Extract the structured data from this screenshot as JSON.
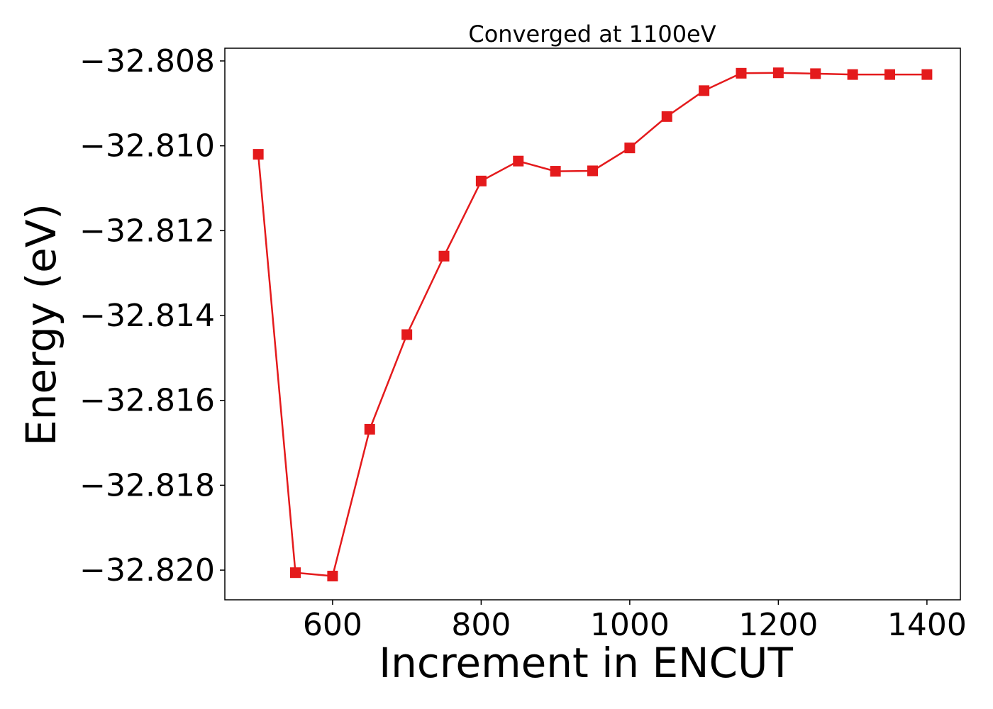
{
  "chart_data": {
    "type": "line",
    "title": "Converged at 1100eV",
    "xlabel": "Increment in ENCUT",
    "ylabel": "Energy (eV)",
    "xlim": [
      455,
      1445
    ],
    "ylim": [
      -32.8207,
      -32.8077
    ],
    "xticks": [
      600,
      800,
      1000,
      1200,
      1400
    ],
    "xtick_labels": [
      "600",
      "800",
      "1000",
      "1200",
      "1400"
    ],
    "yticks": [
      -32.808,
      -32.81,
      -32.812,
      -32.814,
      -32.816,
      -32.818,
      -32.82
    ],
    "ytick_labels": [
      "−32.808",
      "−32.810",
      "−32.812",
      "−32.814",
      "−32.816",
      "−32.818",
      "−32.820"
    ],
    "grid": false,
    "marker": "square",
    "color": "#e41a1c",
    "series": [
      {
        "x": [
          500,
          550,
          600,
          650,
          700,
          750,
          800,
          850,
          900,
          950,
          1000,
          1050,
          1100,
          1150,
          1200,
          1250,
          1300,
          1350,
          1400
        ],
        "values": [
          -32.8102,
          -32.82006,
          -32.82014,
          -32.81668,
          -32.81445,
          -32.8126,
          -32.81083,
          -32.81036,
          -32.8106,
          -32.81059,
          -32.81005,
          -32.80931,
          -32.8087,
          -32.80829,
          -32.80828,
          -32.8083,
          -32.80832,
          -32.80832,
          -32.80832
        ]
      }
    ]
  }
}
